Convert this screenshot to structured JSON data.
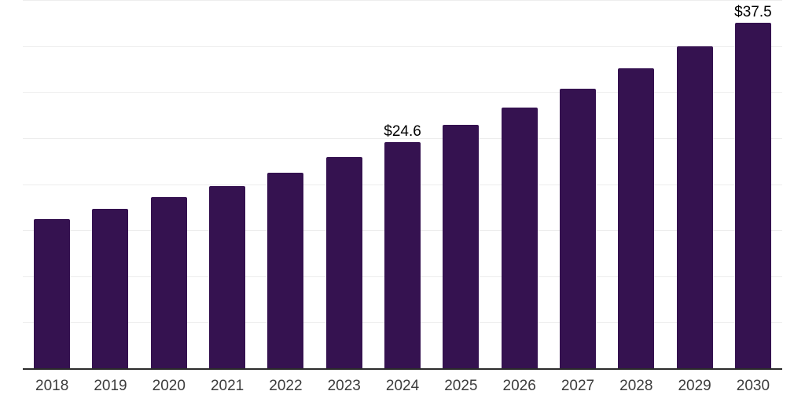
{
  "chart_data": {
    "type": "bar",
    "title": "",
    "xlabel": "",
    "ylabel": "",
    "categories": [
      "2018",
      "2019",
      "2020",
      "2021",
      "2022",
      "2023",
      "2024",
      "2025",
      "2026",
      "2027",
      "2028",
      "2029",
      "2030"
    ],
    "values": [
      16.2,
      17.3,
      18.6,
      19.8,
      21.2,
      22.9,
      24.6,
      26.4,
      28.3,
      30.4,
      32.6,
      35.0,
      37.5
    ],
    "data_labels": [
      "",
      "",
      "",
      "",
      "",
      "",
      "$24.6",
      "",
      "",
      "",
      "",
      "",
      "$37.5"
    ],
    "ylim": [
      0,
      40
    ],
    "y_gridline_step": 5,
    "grid": "on",
    "y_tick_labels": "none",
    "legend": "none",
    "colors": {
      "bar": "#351250",
      "axis_line": "#2b2b2b",
      "gridline": "#ededed",
      "tick_label": "#3c3c3c",
      "data_label": "#000000",
      "background": "#ffffff"
    }
  }
}
